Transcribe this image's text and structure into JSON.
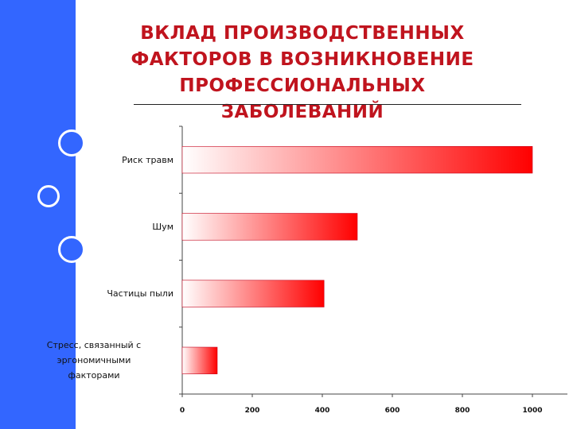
{
  "slide": {
    "title": "ВКЛАД ПРОИЗВОДСТВЕННЫХ\nФАКТОРОВ В ВОЗНИКНОВЕНИЕ\nПРОФЕССИОНАЛЬНЫХ\nЗАБОЛЕВАНИЙ"
  },
  "colors": {
    "title": "#c0141e",
    "side_band": "#3366ff",
    "bar_end": "#ff0000",
    "bar_start": "#ffffff"
  },
  "chart_data": {
    "type": "bar",
    "orientation": "horizontal",
    "title": "",
    "xlabel": "",
    "ylabel": "",
    "categories": [
      "Риск травм",
      "Шум",
      "Частицы пыли",
      "Стресс, связанный с эргономичными факторами"
    ],
    "category_lines": [
      [
        "Риск травм"
      ],
      [
        "Шум"
      ],
      [
        "Частицы пыли"
      ],
      [
        "Стресс, связанный с",
        "эргономичными",
        "факторами"
      ]
    ],
    "values": [
      1000,
      500,
      405,
      100
    ],
    "xlim": [
      0,
      1100
    ],
    "xticks": [
      "0",
      "200",
      "400",
      "600",
      "800",
      "1000"
    ],
    "grid": false,
    "legend": "none"
  }
}
